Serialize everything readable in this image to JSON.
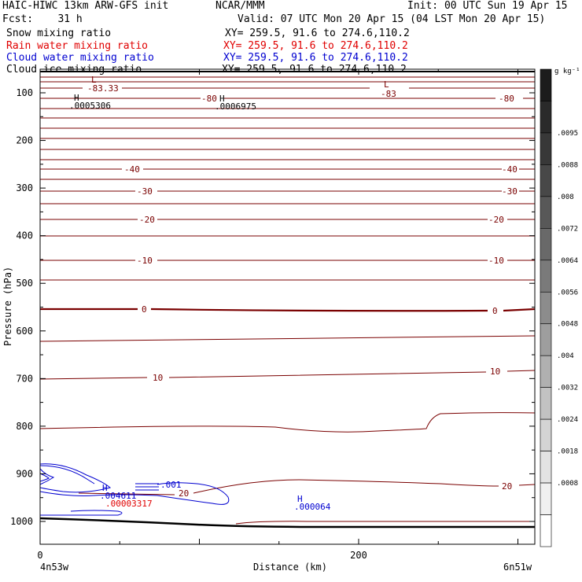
{
  "header": {
    "line1_left": "HAIC-HIWC 13km ARW-GFS init",
    "line1_mid": "NCAR/MMM",
    "line1_right": "Init: 00 UTC Sun 19 Apr 15",
    "line2_left": "Fcst:    31 h",
    "line2_right": "Valid: 07 UTC Mon 20 Apr 15 (04 LST Mon 20 Apr 15)",
    "fields": [
      {
        "name": "Snow mixing ratio",
        "xy": "XY= 259.5, 91.6 to 274.6,110.2",
        "color": "#000000"
      },
      {
        "name": "Rain water mixing ratio",
        "xy": "XY= 259.5, 91.6 to 274.6,110.2",
        "color": "#e00000"
      },
      {
        "name": "Cloud water mixing ratio",
        "xy": "XY= 259.5, 91.6 to 274.6,110.2",
        "color": "#0000d0"
      },
      {
        "name": "Cloud ice mixing ratio",
        "xy": "XY= 259.5, 91.6 to 274.6,110.2",
        "color": "#000000"
      }
    ]
  },
  "chart_data": {
    "type": "contour cross-section",
    "xlabel": "Distance (km)",
    "ylabel": "Pressure (hPa)",
    "x_ticks": [
      0,
      200
    ],
    "x_tick_labels": [
      "0",
      "200"
    ],
    "x_end_labels": {
      "left": "4n53w",
      "right": "6n51w"
    },
    "xlim": [
      0,
      311
    ],
    "y_ticks": [
      100,
      200,
      300,
      400,
      500,
      600,
      700,
      800,
      900,
      1000
    ],
    "ylim": [
      1040,
      85
    ],
    "colorbar": {
      "unit": "g kg⁻¹",
      "labels": [
        ".0095",
        ".0088",
        ".008",
        ".0072",
        ".0064",
        ".0056",
        ".0048",
        ".004",
        ".0032",
        ".0024",
        ".0018",
        ".0008"
      ],
      "colors": [
        "#1c1c1c",
        "#2a2a2a",
        "#383838",
        "#484848",
        "#585858",
        "#696969",
        "#7a7a7a",
        "#8c8c8c",
        "#9e9e9e",
        "#b0b0b0",
        "#c2c2c2",
        "#d4d4d4",
        "#e3e3e3",
        "#f0f0f0",
        "#ffffff"
      ]
    },
    "temperature_contours": {
      "color": "#7a0000",
      "levels_shown": [
        "-83.33",
        "-83",
        "-80",
        "-80",
        "-80",
        "-40",
        "-40",
        "-30",
        "-30",
        "-20",
        "-20",
        "-10",
        "-10",
        "0",
        "0",
        "10",
        "10",
        "-20",
        "20"
      ]
    },
    "annotations": {
      "highs": [
        {
          "mark": "H",
          "value": ".0005306",
          "color": "#000000"
        },
        {
          "mark": "H",
          "value": ".0006975",
          "color": "#000000"
        },
        {
          "mark": "H",
          "value": ".004611",
          "color": "#0000d0"
        },
        {
          "mark": "",
          "value": ".00003317",
          "color": "#e00000"
        },
        {
          "mark": "H",
          "value": ".000064",
          "color": "#0000d0"
        }
      ],
      "lows": [
        {
          "mark": "L",
          "value": "-83.33"
        },
        {
          "mark": "L",
          "value": "-83"
        }
      ],
      "cloud_water_label": ".001",
      "temp_label_20_left": "20"
    }
  }
}
